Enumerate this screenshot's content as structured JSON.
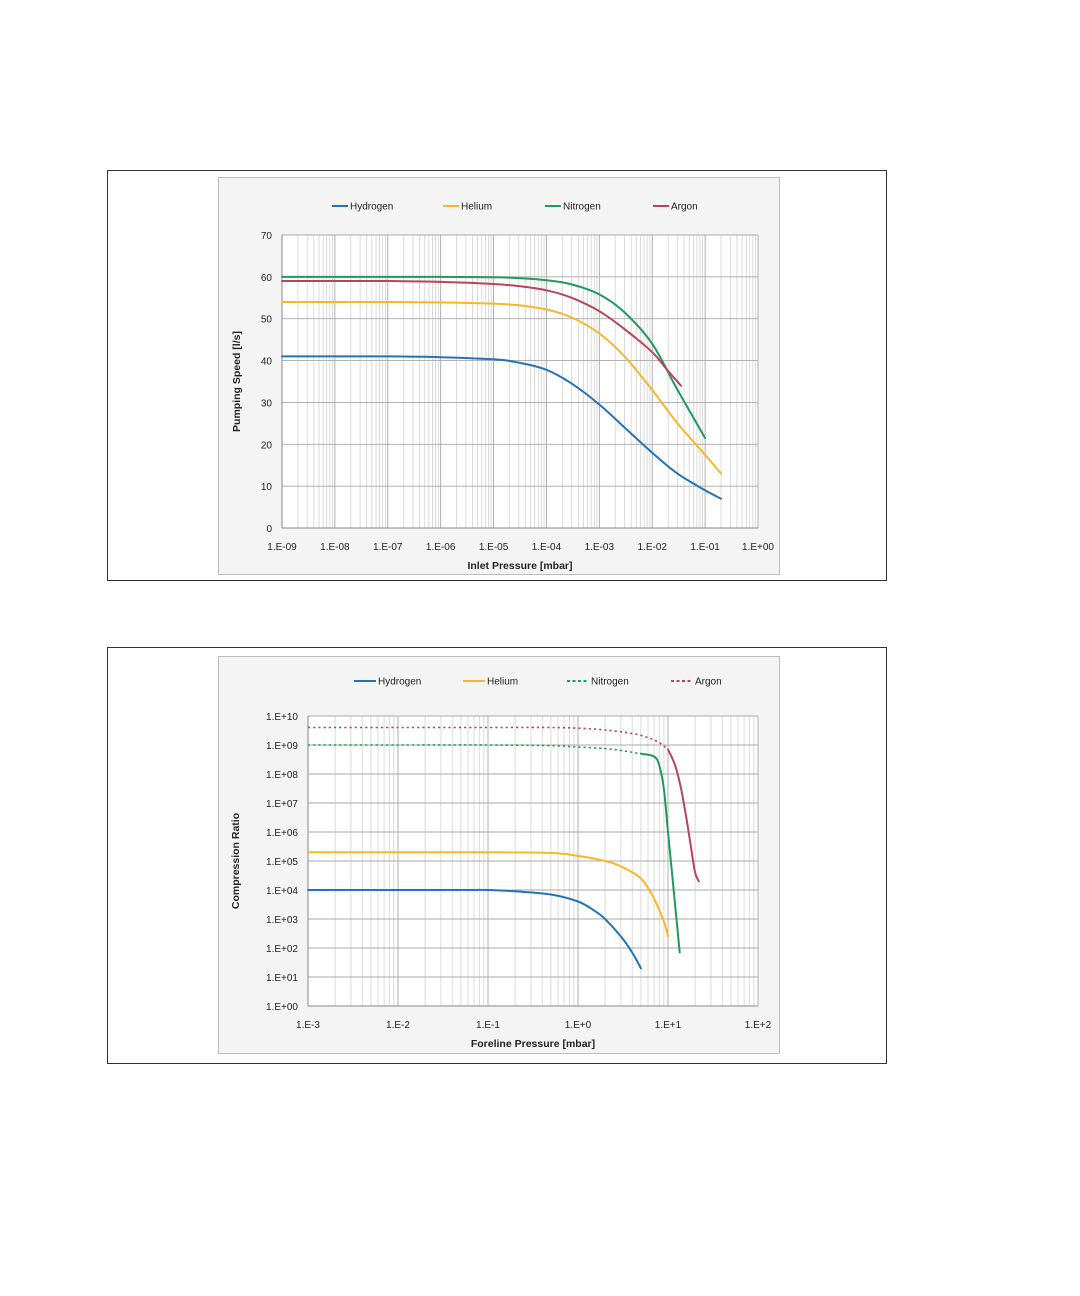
{
  "chart_data": [
    {
      "type": "line",
      "x_scale": "log",
      "xlabel": "Inlet Pressure [mbar]",
      "ylabel": "Pumping Speed [l/s]",
      "xlim": [
        1e-09,
        1
      ],
      "ylim": [
        0,
        70
      ],
      "x_ticks": [
        1e-09,
        1e-08,
        1e-07,
        1e-06,
        1e-05,
        0.0001,
        0.001,
        0.01,
        0.1,
        1
      ],
      "x_tick_labels": [
        "1.E-09",
        "1.E-08",
        "1.E-07",
        "1.E-06",
        "1.E-05",
        "1.E-04",
        "1.E-03",
        "1.E-02",
        "1.E-01",
        "1.E+00"
      ],
      "y_ticks": [
        0,
        10,
        20,
        30,
        40,
        50,
        60,
        70
      ],
      "y_tick_labels": [
        "0",
        "10",
        "20",
        "30",
        "40",
        "50",
        "60",
        "70"
      ],
      "grid": true,
      "legend_position": "top",
      "series": [
        {
          "name": "Hydrogen",
          "color": "#2473b5",
          "dashed": false,
          "x": [
            1e-09,
            1e-08,
            1e-07,
            1e-06,
            1e-05,
            3e-05,
            0.0001,
            0.0003,
            0.001,
            0.003,
            0.01,
            0.03,
            0.1,
            0.2
          ],
          "y": [
            41,
            41,
            41,
            40.8,
            40.3,
            39.5,
            37.8,
            34.5,
            29.5,
            24,
            18,
            13,
            9,
            7
          ]
        },
        {
          "name": "Helium",
          "color": "#f4b82a",
          "dashed": false,
          "x": [
            1e-09,
            1e-08,
            1e-07,
            1e-06,
            1e-05,
            3e-05,
            0.0001,
            0.0003,
            0.001,
            0.003,
            0.01,
            0.03,
            0.1,
            0.2
          ],
          "y": [
            54,
            54,
            54,
            53.9,
            53.6,
            53.2,
            52.2,
            50.3,
            46.5,
            41,
            33,
            25,
            17.5,
            13
          ]
        },
        {
          "name": "Nitrogen",
          "color": "#1f9a5b",
          "dashed": false,
          "x": [
            1e-09,
            1e-08,
            1e-07,
            1e-06,
            1e-05,
            3e-05,
            0.0001,
            0.0003,
            0.001,
            0.003,
            0.01,
            0.03,
            0.1
          ],
          "y": [
            60,
            60,
            60,
            60,
            59.9,
            59.7,
            59.2,
            58.2,
            55.8,
            51.5,
            44,
            33,
            21.5
          ]
        },
        {
          "name": "Argon",
          "color": "#b5455a",
          "dashed": false,
          "x": [
            1e-09,
            1e-08,
            1e-07,
            1e-06,
            1e-05,
            3e-05,
            0.0001,
            0.0003,
            0.001,
            0.003,
            0.01,
            0.02,
            0.035
          ],
          "y": [
            59,
            59,
            59,
            58.8,
            58.3,
            57.8,
            56.8,
            55,
            51.8,
            47.5,
            42,
            37.5,
            34
          ]
        }
      ]
    },
    {
      "type": "line",
      "x_scale": "log",
      "y_scale": "log",
      "xlabel": "Foreline Pressure [mbar]",
      "ylabel": "Compression Ratio",
      "xlim": [
        0.001,
        100
      ],
      "ylim": [
        1,
        10000000000.0
      ],
      "x_ticks": [
        0.001,
        0.01,
        0.1,
        1,
        10,
        100
      ],
      "x_tick_labels": [
        "1.E-3",
        "1.E-2",
        "1.E-1",
        "1.E+0",
        "1.E+1",
        "1.E+2"
      ],
      "y_ticks": [
        1,
        10,
        100,
        1000,
        10000,
        100000,
        1000000,
        10000000,
        100000000,
        1000000000,
        10000000000
      ],
      "y_tick_labels": [
        "1.E+00",
        "1.E+01",
        "1.E+02",
        "1.E+03",
        "1.E+04",
        "1.E+05",
        "1.E+06",
        "1.E+07",
        "1.E+08",
        "1.E+09",
        "1.E+10"
      ],
      "grid": true,
      "legend_position": "top",
      "series": [
        {
          "name": "Hydrogen",
          "color": "#2473b5",
          "dashed": false,
          "x": [
            0.001,
            0.01,
            0.05,
            0.1,
            0.2,
            0.5,
            1,
            1.5,
            2,
            3,
            4,
            5
          ],
          "y": [
            10000,
            10000,
            10000,
            10000,
            9000,
            7000,
            4000,
            2000,
            1000,
            250,
            70,
            20
          ]
        },
        {
          "name": "Helium",
          "color": "#f4b82a",
          "dashed": false,
          "x": [
            0.001,
            0.01,
            0.1,
            0.5,
            1,
            2,
            3,
            5,
            7,
            9,
            10
          ],
          "y": [
            200000,
            200000,
            200000,
            190000,
            150000,
            100000,
            65000,
            25000,
            5000,
            800,
            250
          ]
        },
        {
          "name": "Nitrogen",
          "color": "#1f9a5b",
          "dashed": true,
          "x": [
            0.001,
            0.01,
            0.1,
            0.5,
            1,
            2,
            3,
            5
          ],
          "y": [
            1000000000,
            1000000000,
            1000000000,
            950000000,
            850000000,
            750000000,
            650000000,
            500000000
          ]
        },
        {
          "name": "",
          "color": "#1f9a5b",
          "dashed": false,
          "x": [
            5,
            7,
            8,
            9,
            10,
            11,
            12,
            13.5
          ],
          "y": [
            500000000,
            400000000,
            200000000,
            30000000,
            1000000,
            50000,
            3000,
            70
          ]
        },
        {
          "name": "Argon",
          "color": "#b5455a",
          "dashed": true,
          "x": [
            0.001,
            0.01,
            0.1,
            0.5,
            1,
            2,
            4,
            6,
            8,
            10
          ],
          "y": [
            4000000000,
            4000000000,
            4000000000,
            4000000000,
            3800000000,
            3300000000,
            2500000000,
            1800000000,
            1200000000,
            700000000
          ]
        },
        {
          "name": "",
          "color": "#b5455a",
          "dashed": false,
          "x": [
            10,
            12,
            14,
            16,
            18,
            20,
            22
          ],
          "y": [
            700000000,
            200000000,
            30000000,
            3000000,
            300000,
            40000,
            20000
          ]
        }
      ]
    }
  ]
}
